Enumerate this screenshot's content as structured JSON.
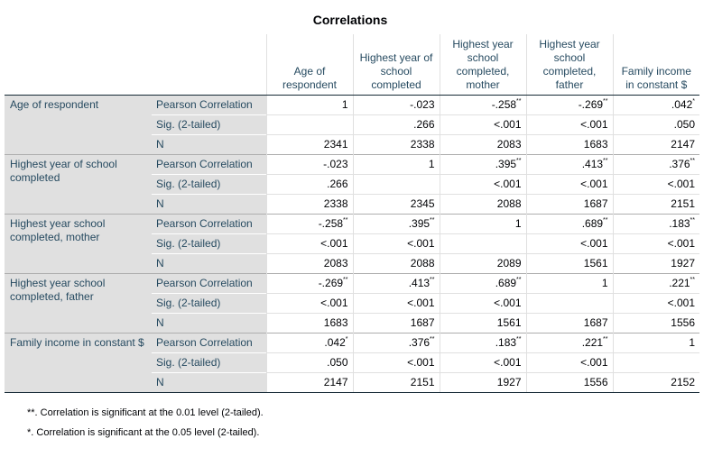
{
  "title": "Correlations",
  "columns": [
    "Age of respondent",
    "Highest year of school completed",
    "Highest year school completed, mother",
    "Highest year school completed, father",
    "Family income in constant $"
  ],
  "stat_labels": [
    "Pearson Correlation",
    "Sig. (2-tailed)",
    "N"
  ],
  "rows": [
    {
      "label": "Age of respondent",
      "pearson": [
        {
          "v": "1",
          "s": ""
        },
        {
          "v": "-.023",
          "s": ""
        },
        {
          "v": "-.258",
          "s": "**"
        },
        {
          "v": "-.269",
          "s": "**"
        },
        {
          "v": ".042",
          "s": "*"
        }
      ],
      "sig": [
        "",
        ".266",
        "<.001",
        "<.001",
        ".050"
      ],
      "n": [
        "2341",
        "2338",
        "2083",
        "1683",
        "2147"
      ]
    },
    {
      "label": "Highest year of school completed",
      "pearson": [
        {
          "v": "-.023",
          "s": ""
        },
        {
          "v": "1",
          "s": ""
        },
        {
          "v": ".395",
          "s": "**"
        },
        {
          "v": ".413",
          "s": "**"
        },
        {
          "v": ".376",
          "s": "**"
        }
      ],
      "sig": [
        ".266",
        "",
        "<.001",
        "<.001",
        "<.001"
      ],
      "n": [
        "2338",
        "2345",
        "2088",
        "1687",
        "2151"
      ]
    },
    {
      "label": "Highest year school completed, mother",
      "pearson": [
        {
          "v": "-.258",
          "s": "**"
        },
        {
          "v": ".395",
          "s": "**"
        },
        {
          "v": "1",
          "s": ""
        },
        {
          "v": ".689",
          "s": "**"
        },
        {
          "v": ".183",
          "s": "**"
        }
      ],
      "sig": [
        "<.001",
        "<.001",
        "",
        "<.001",
        "<.001"
      ],
      "n": [
        "2083",
        "2088",
        "2089",
        "1561",
        "1927"
      ]
    },
    {
      "label": "Highest year school completed, father",
      "pearson": [
        {
          "v": "-.269",
          "s": "**"
        },
        {
          "v": ".413",
          "s": "**"
        },
        {
          "v": ".689",
          "s": "**"
        },
        {
          "v": "1",
          "s": ""
        },
        {
          "v": ".221",
          "s": "**"
        }
      ],
      "sig": [
        "<.001",
        "<.001",
        "<.001",
        "",
        "<.001"
      ],
      "n": [
        "1683",
        "1687",
        "1561",
        "1687",
        "1556"
      ]
    },
    {
      "label": "Family income in constant $",
      "pearson": [
        {
          "v": ".042",
          "s": "*"
        },
        {
          "v": ".376",
          "s": "**"
        },
        {
          "v": ".183",
          "s": "**"
        },
        {
          "v": ".221",
          "s": "**"
        },
        {
          "v": "1",
          "s": ""
        }
      ],
      "sig": [
        ".050",
        "<.001",
        "<.001",
        "<.001",
        ""
      ],
      "n": [
        "2147",
        "2151",
        "1927",
        "1556",
        "2152"
      ]
    }
  ],
  "footnotes": [
    "**. Correlation is significant at the 0.01 level (2-tailed).",
    "*. Correlation is significant at the 0.05 level (2-tailed)."
  ]
}
